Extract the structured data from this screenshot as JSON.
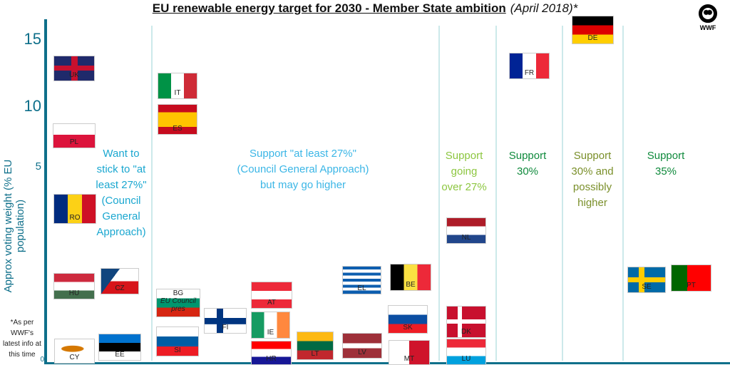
{
  "title": {
    "main": "EU renewable energy target for 2030 - Member State ambition",
    "sub": "(April 2018)*"
  },
  "footnote": "*As per WWF's latest info at this time",
  "logo": "WWF",
  "chart_data": {
    "type": "scatter",
    "ylabel": "Approx voting weight (% EU population)",
    "yticks": [
      "0",
      "5",
      "10",
      "15"
    ],
    "ylim": [
      0,
      16
    ],
    "groups": [
      {
        "label": "Want to\nstick to \"at\nleast 27%\"\n(Council\nGeneral\nApproach)",
        "color": "#1aa7d0",
        "countries": [
          "UK",
          "PL",
          "RO",
          "HU",
          "CZ",
          "CY",
          "EE"
        ]
      },
      {
        "label": "Support \"at least 27%\"\n(Council General Approach)\nbut may go higher",
        "color": "#3bb6e6",
        "countries": [
          "IT",
          "ES",
          "BG",
          "SI",
          "FI",
          "AT",
          "IE",
          "HR",
          "LT",
          "LV",
          "EL",
          "BE",
          "SK",
          "MT"
        ]
      },
      {
        "label": "Support\ngoing\nover 27%",
        "color": "#8cc63f",
        "countries": [
          "NL",
          "DK",
          "LU"
        ]
      },
      {
        "label": "Support\n30%",
        "color": "#0f8a3c",
        "countries": [
          "FR"
        ]
      },
      {
        "label": "Support\n30% and\npossibly\nhigher",
        "color": "#7a8f2a",
        "countries": [
          "DE"
        ]
      },
      {
        "label": "Support\n35%",
        "color": "#0f8a3c",
        "countries": [
          "SE",
          "PT"
        ]
      }
    ],
    "points": [
      {
        "code": "UK",
        "y": 12.8
      },
      {
        "code": "PL",
        "y": 7.4
      },
      {
        "code": "RO",
        "y": 3.8
      },
      {
        "code": "HU",
        "y": 1.9
      },
      {
        "code": "CZ",
        "y": 2.1
      },
      {
        "code": "CY",
        "y": 0.2
      },
      {
        "code": "EE",
        "y": 0.3
      },
      {
        "code": "IT",
        "y": 11.8
      },
      {
        "code": "ES",
        "y": 9.1
      },
      {
        "code": "BG",
        "y": 1.4,
        "note": "EU Council pres"
      },
      {
        "code": "SI",
        "y": 0.4
      },
      {
        "code": "FI",
        "y": 1.1
      },
      {
        "code": "AT",
        "y": 1.7
      },
      {
        "code": "IE",
        "y": 0.9
      },
      {
        "code": "HR",
        "y": 0.8
      },
      {
        "code": "LT",
        "y": 0.6
      },
      {
        "code": "LV",
        "y": 0.4
      },
      {
        "code": "EL",
        "y": 2.1
      },
      {
        "code": "BE",
        "y": 2.2
      },
      {
        "code": "SK",
        "y": 1.1
      },
      {
        "code": "MT",
        "y": 0.1
      },
      {
        "code": "NL",
        "y": 3.4
      },
      {
        "code": "DK",
        "y": 1.1
      },
      {
        "code": "LU",
        "y": 0.1
      },
      {
        "code": "FR",
        "y": 13.0
      },
      {
        "code": "DE",
        "y": 16.0
      },
      {
        "code": "SE",
        "y": 2.0
      },
      {
        "code": "PT",
        "y": 2.0
      }
    ]
  }
}
